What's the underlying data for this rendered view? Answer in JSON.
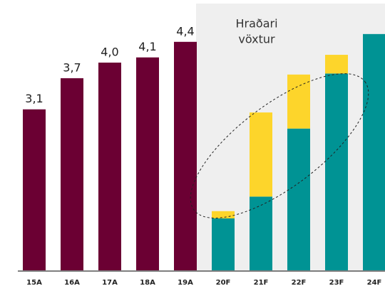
{
  "chart_data": {
    "type": "bar",
    "stacked": true,
    "annotation": [
      "Hraðari",
      "vöxtur"
    ],
    "categories": [
      "15A",
      "16A",
      "17A",
      "18A",
      "19A",
      "20F",
      "21F",
      "22F",
      "23F",
      "24F"
    ],
    "series": [
      {
        "color": "#6b0033",
        "values": [
          3.1,
          3.7,
          4.0,
          4.1,
          4.4,
          null,
          null,
          null,
          null,
          null
        ],
        "value_labels": [
          "3,1",
          "3,7",
          "4,0",
          "4,1",
          "4,4",
          null,
          null,
          null,
          null,
          null
        ]
      },
      {
        "color": "#009394",
        "values": [
          null,
          null,
          null,
          null,
          null,
          1.0,
          1.42,
          2.73,
          3.79,
          4.55
        ]
      },
      {
        "color": "#fdd52b",
        "values": [
          null,
          null,
          null,
          null,
          null,
          0.14,
          1.62,
          1.04,
          0.36,
          0
        ]
      }
    ],
    "ylim": [
      0,
      5
    ]
  }
}
